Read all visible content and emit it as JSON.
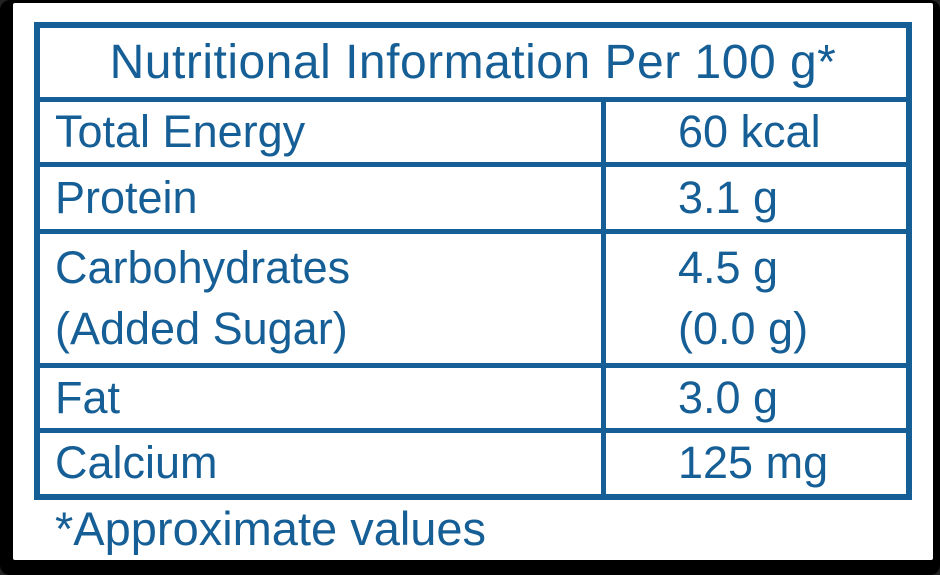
{
  "header": {
    "title": "Nutritional Information Per 100 g*"
  },
  "table": {
    "rows": [
      {
        "label": "Total Energy",
        "value": "60 kcal"
      },
      {
        "label": "Protein",
        "value": "3.1 g"
      },
      {
        "label": "Carbohydrates",
        "label2": "(Added Sugar)",
        "value": "4.5 g",
        "value2": "(0.0 g)"
      },
      {
        "label": "Fat",
        "value": "3.0 g"
      },
      {
        "label": "Calcium",
        "value": "125 mg"
      }
    ]
  },
  "footnote": "*Approximate values",
  "colors": {
    "accent": "#165f96",
    "paper": "#ffffff",
    "frame": "#000000"
  }
}
